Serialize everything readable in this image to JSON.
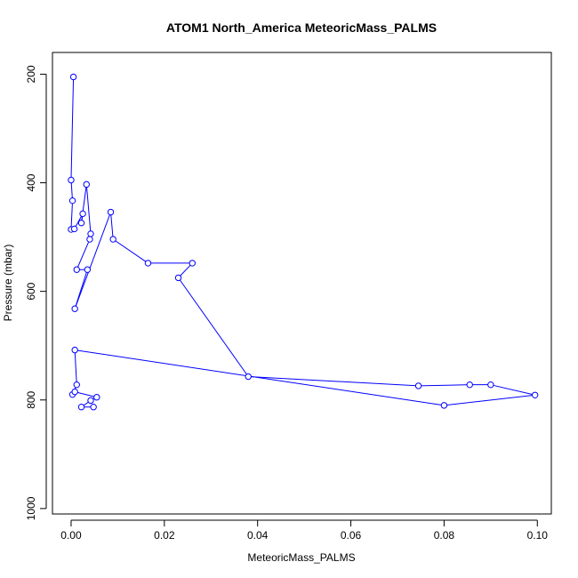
{
  "chart_data": {
    "type": "line",
    "title": "ATOM1 North_America MeteoricMass_PALMS",
    "xlabel": "MeteoricMass_PALMS",
    "ylabel": "Pressure (mbar)",
    "xlim": [
      -0.004,
      0.103
    ],
    "ylim": [
      1010,
      160
    ],
    "y_reversed": true,
    "x_ticks": [
      "0.00",
      "0.02",
      "0.04",
      "0.06",
      "0.08",
      "0.10"
    ],
    "x_tick_values": [
      0,
      0.02,
      0.04,
      0.06,
      0.08,
      0.1
    ],
    "y_ticks": [
      "200",
      "400",
      "600",
      "800",
      "1000"
    ],
    "y_tick_values": [
      200,
      400,
      600,
      800,
      1000
    ],
    "grid": false,
    "legend": "none",
    "series_color": "#0000ff",
    "series": [
      {
        "points": [
          [
            0.0005,
            205
          ],
          [
            0.0,
            395
          ],
          [
            0.0003,
            433
          ],
          [
            0.0,
            486
          ],
          [
            0.0007,
            485
          ],
          [
            0.0025,
            457
          ],
          [
            0.0022,
            474
          ],
          [
            0.0033,
            403
          ],
          [
            0.0042,
            494
          ],
          [
            0.004,
            504
          ],
          [
            0.0012,
            560
          ],
          [
            0.0035,
            560
          ],
          [
            0.0008,
            632
          ],
          [
            0.0085,
            454
          ],
          [
            0.009,
            504
          ],
          [
            0.0165,
            548
          ],
          [
            0.026,
            548
          ],
          [
            0.023,
            575
          ],
          [
            0.038,
            757
          ],
          [
            0.0745,
            774
          ],
          [
            0.0855,
            772
          ],
          [
            0.09,
            772
          ],
          [
            0.0995,
            791
          ],
          [
            0.08,
            810
          ],
          [
            0.0008,
            708
          ],
          [
            0.0012,
            772
          ],
          [
            0.0003,
            790
          ],
          [
            0.0008,
            785
          ],
          [
            0.0055,
            795
          ],
          [
            0.0042,
            801
          ],
          [
            0.0022,
            813
          ],
          [
            0.0048,
            813
          ]
        ]
      }
    ]
  }
}
